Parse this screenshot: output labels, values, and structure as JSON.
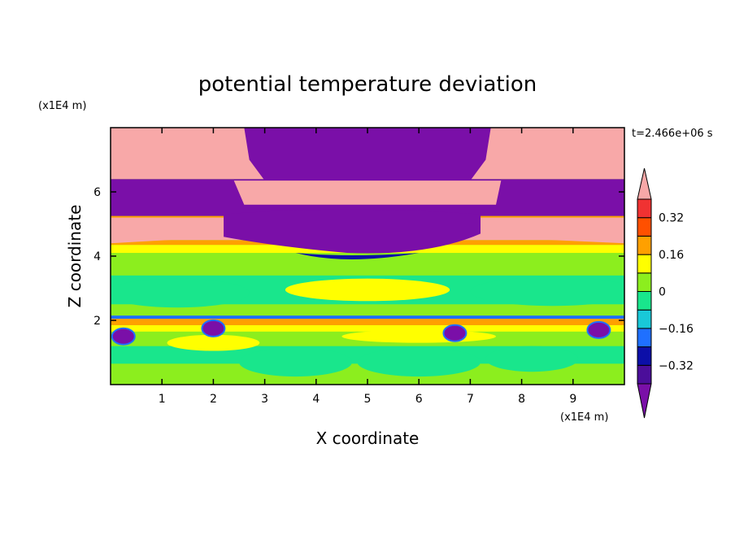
{
  "chart_data": {
    "type": "heatmap",
    "title": "potential temperature deviation",
    "xlabel": "X coordinate",
    "ylabel": "Z coordinate",
    "x_unit": "(x1E4 m)",
    "y_unit": "(x1E4 m)",
    "time_label": "t=2.466e+06 s",
    "xlim": [
      0,
      10
    ],
    "ylim": [
      0,
      8
    ],
    "x_ticks": [
      1,
      2,
      3,
      4,
      5,
      6,
      7,
      8,
      9
    ],
    "y_ticks": [
      2,
      4,
      6
    ],
    "colorbar": {
      "levels": [
        -0.4,
        -0.32,
        -0.24,
        -0.16,
        -0.08,
        0,
        0.08,
        0.16,
        0.24,
        0.32,
        0.4
      ],
      "tick_values": [
        0.32,
        0.16,
        0,
        -0.16,
        -0.32
      ],
      "tick_labels": [
        "0.32",
        "0.16",
        "0",
        "−0.16",
        "−0.32"
      ],
      "colors": [
        "#7A0FA8",
        "#4B0E9A",
        "#0C0FA8",
        "#1F70FF",
        "#19C8D8",
        "#19E68C",
        "#8CEE1E",
        "#FFFF00",
        "#FFA000",
        "#FF5000",
        "#F03232",
        "#F8A8A8"
      ],
      "extend": "both"
    },
    "grid": false
  }
}
